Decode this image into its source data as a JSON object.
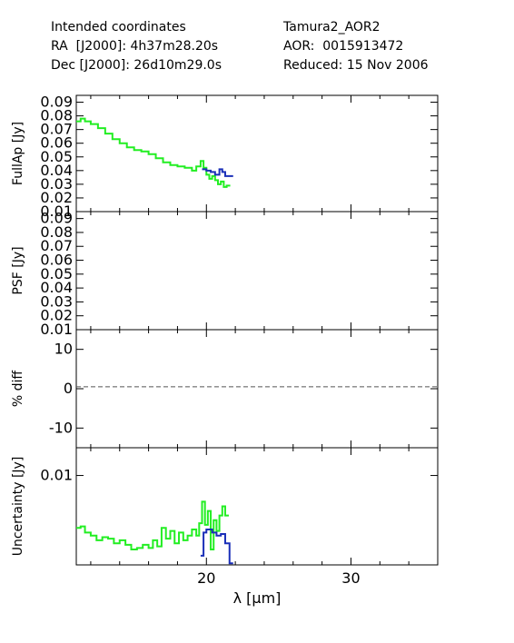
{
  "header": {
    "left": [
      "Intended coordinates",
      "RA  [J2000]: 4h37m28.20s",
      "Dec [J2000]: 26d10m29.0s"
    ],
    "right": [
      "Tamura2_AOR2",
      "AOR:  0015913472",
      "Reduced: 15 Nov 2006"
    ]
  },
  "colors": {
    "green": "#22ee22",
    "blue": "#1a2fb8",
    "axis": "#000000",
    "dash": "#555555"
  },
  "chart_data": [
    {
      "type": "line",
      "ylabel": "FullAp [Jy]",
      "xlim": [
        11,
        36
      ],
      "ylim": [
        0.01,
        0.095
      ],
      "yticks": [
        0.01,
        0.02,
        0.03,
        0.04,
        0.05,
        0.06,
        0.07,
        0.08,
        0.09
      ],
      "ytick_labels": [
        "0.01",
        "0.02",
        "0.03",
        "0.04",
        "0.05",
        "0.06",
        "0.07",
        "0.08",
        "0.09"
      ],
      "series": [
        {
          "color": "green",
          "step": true,
          "x": [
            11.0,
            11.3,
            11.6,
            12.0,
            12.5,
            13.0,
            13.5,
            14.0,
            14.5,
            15.0,
            15.5,
            16.0,
            16.5,
            17.0,
            17.5,
            18.0,
            18.5,
            19.0,
            19.3,
            19.6,
            19.8,
            20.0,
            20.2,
            20.4,
            20.6,
            20.8,
            21.0,
            21.2,
            21.4
          ],
          "y": [
            0.076,
            0.078,
            0.076,
            0.074,
            0.071,
            0.067,
            0.063,
            0.06,
            0.057,
            0.055,
            0.054,
            0.052,
            0.049,
            0.046,
            0.044,
            0.043,
            0.042,
            0.04,
            0.043,
            0.047,
            0.042,
            0.037,
            0.034,
            0.036,
            0.033,
            0.03,
            0.032,
            0.028,
            0.029
          ]
        },
        {
          "color": "blue",
          "step": true,
          "x": [
            19.7,
            20.0,
            20.3,
            20.6,
            20.9,
            21.1,
            21.3,
            21.6
          ],
          "y": [
            0.041,
            0.04,
            0.039,
            0.037,
            0.041,
            0.039,
            0.036,
            0.036
          ]
        }
      ]
    },
    {
      "type": "line",
      "ylabel": "PSF [Jy]",
      "xlim": [
        11,
        36
      ],
      "ylim": [
        0.01,
        0.095
      ],
      "yticks": [
        0.01,
        0.02,
        0.03,
        0.04,
        0.05,
        0.06,
        0.07,
        0.08,
        0.09
      ],
      "ytick_labels": [
        "0.01",
        "0.02",
        "0.03",
        "0.04",
        "0.05",
        "0.06",
        "0.07",
        "0.08",
        "0.09"
      ],
      "series": []
    },
    {
      "type": "line",
      "ylabel": "% diff",
      "xlim": [
        11,
        36
      ],
      "ylim": [
        -15,
        15
      ],
      "yticks": [
        -10,
        0,
        10
      ],
      "ytick_labels": [
        "-10",
        "0",
        "10"
      ],
      "reference_line": 0.5,
      "series": []
    },
    {
      "type": "line",
      "ylabel": "Uncertainty [Jy]",
      "xlabel": "λ [μm]",
      "xlim": [
        11,
        36
      ],
      "xticks": [
        20,
        30
      ],
      "xtick_labels": [
        "20",
        "30"
      ],
      "ylim": [
        0.0042,
        0.0118
      ],
      "yticks": [
        0.01
      ],
      "ytick_labels": [
        "0.01"
      ],
      "series": [
        {
          "color": "green",
          "step": true,
          "x": [
            11.0,
            11.3,
            11.6,
            12.0,
            12.4,
            12.8,
            13.2,
            13.6,
            14.0,
            14.4,
            14.8,
            15.2,
            15.6,
            16.0,
            16.3,
            16.6,
            16.9,
            17.2,
            17.5,
            17.8,
            18.1,
            18.4,
            18.7,
            19.0,
            19.3,
            19.5,
            19.7,
            19.9,
            20.1,
            20.3,
            20.5,
            20.7,
            20.9,
            21.1,
            21.3
          ],
          "y": [
            0.0066,
            0.0067,
            0.0063,
            0.0061,
            0.0058,
            0.006,
            0.0059,
            0.0056,
            0.0058,
            0.0055,
            0.0052,
            0.0053,
            0.0055,
            0.0053,
            0.0058,
            0.0054,
            0.0066,
            0.0059,
            0.0064,
            0.0056,
            0.0063,
            0.0058,
            0.0061,
            0.0065,
            0.0061,
            0.0069,
            0.0083,
            0.0068,
            0.0077,
            0.0052,
            0.0071,
            0.0064,
            0.0074,
            0.008,
            0.0074
          ]
        },
        {
          "color": "blue",
          "step": true,
          "x": [
            19.6,
            19.8,
            20.0,
            20.4,
            20.7,
            21.0,
            21.3,
            21.6
          ],
          "y": [
            0.0048,
            0.0063,
            0.0065,
            0.0063,
            0.0061,
            0.0062,
            0.0056,
            0.0043
          ]
        }
      ]
    }
  ]
}
